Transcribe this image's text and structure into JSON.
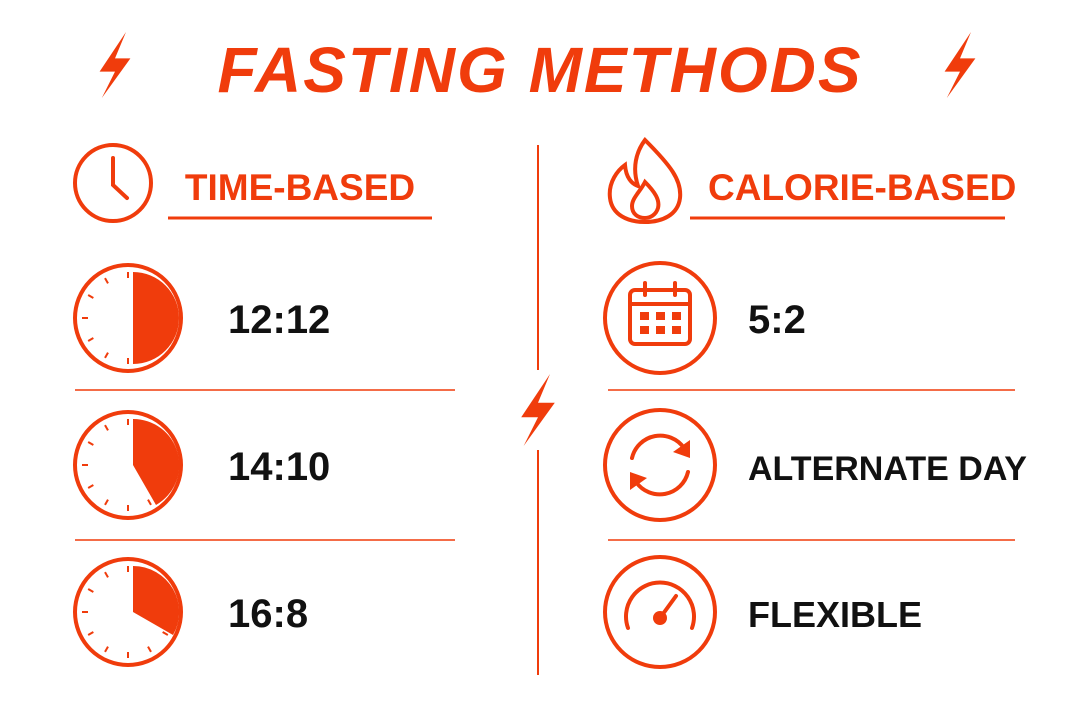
{
  "title": "FASTING METHODS",
  "sections": [
    {
      "heading": "TIME-BASED",
      "items": [
        "12:12",
        "14:10",
        "16:8"
      ]
    },
    {
      "heading": "CALORIE-BASED",
      "items": [
        "5:2",
        "ALTERNATE DAY",
        "FLEXIBLE"
      ]
    }
  ]
}
